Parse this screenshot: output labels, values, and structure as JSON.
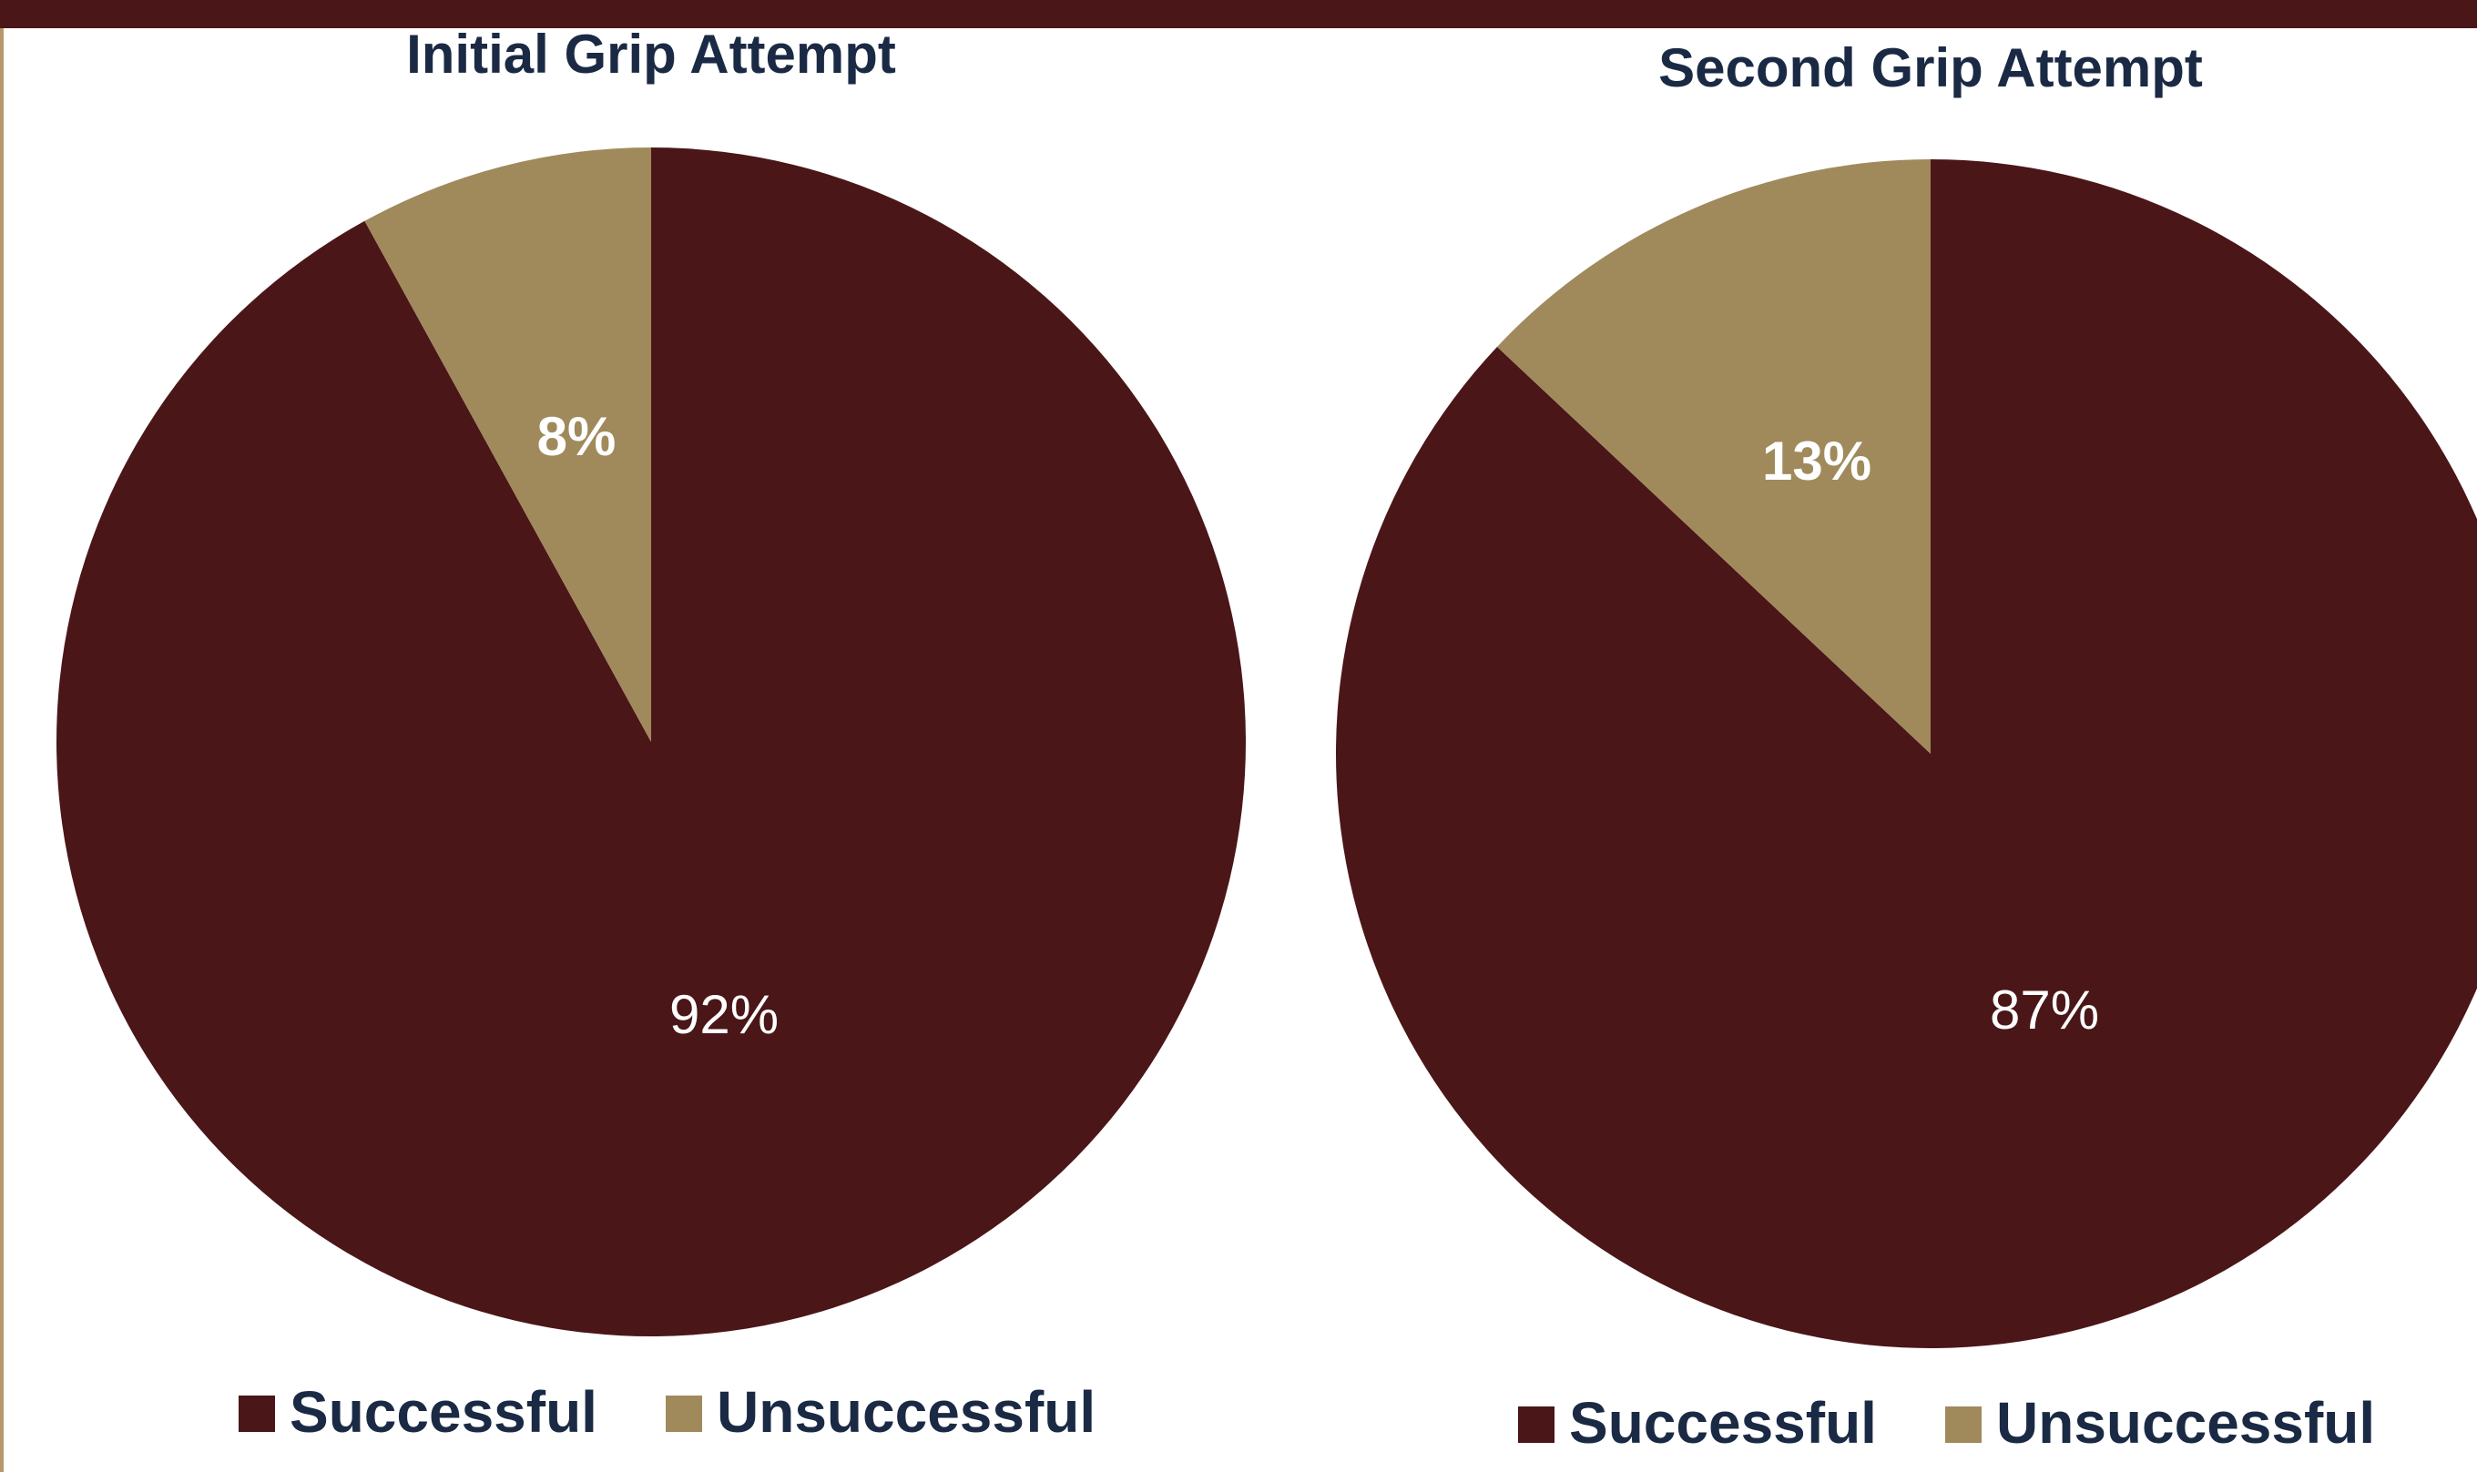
{
  "colors": {
    "successful": "#4b1618",
    "unsuccessful": "#a08a5c"
  },
  "chart_data": [
    {
      "type": "pie",
      "title": "Initial Grip Attempt",
      "categories": [
        "Successful",
        "Unsuccessful"
      ],
      "values": [
        92,
        8
      ],
      "data_labels": [
        "92%",
        "8%"
      ],
      "legend_position": "bottom"
    },
    {
      "type": "pie",
      "title": "Second Grip Attempt",
      "categories": [
        "Successful",
        "Unsuccessful"
      ],
      "values": [
        87,
        13
      ],
      "data_labels": [
        "87%",
        "13%"
      ],
      "legend_position": "bottom"
    }
  ]
}
